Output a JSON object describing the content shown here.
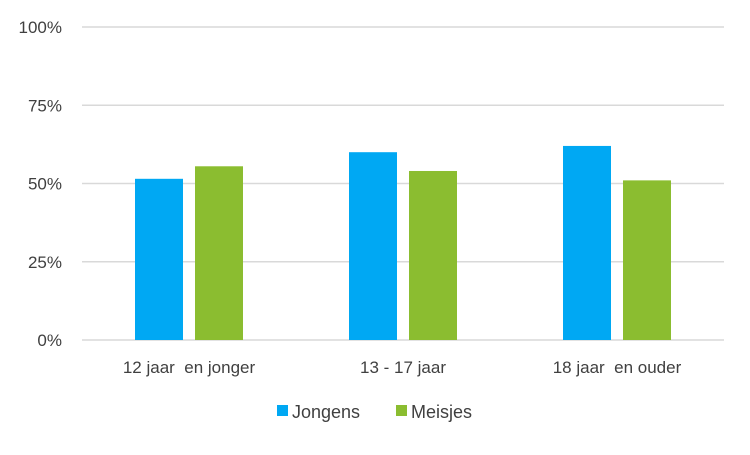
{
  "chart_data": {
    "type": "bar",
    "title": "",
    "xlabel": "",
    "ylabel": "",
    "ylim": [
      0,
      100
    ],
    "y_ticks": [
      "0%",
      "25%",
      "50%",
      "75%",
      "100%"
    ],
    "y_tick_values": [
      0,
      25,
      50,
      75,
      100
    ],
    "grid": true,
    "legend_position": "bottom",
    "categories": [
      "12 jaar  en jonger",
      "13 - 17 jaar",
      "18 jaar  en ouder"
    ],
    "series": [
      {
        "name": "Jongens",
        "color": "#00a8f3",
        "values": [
          51.5,
          60,
          62
        ]
      },
      {
        "name": "Meisjes",
        "color": "#8bbd30",
        "values": [
          55.5,
          54,
          51
        ]
      }
    ]
  }
}
